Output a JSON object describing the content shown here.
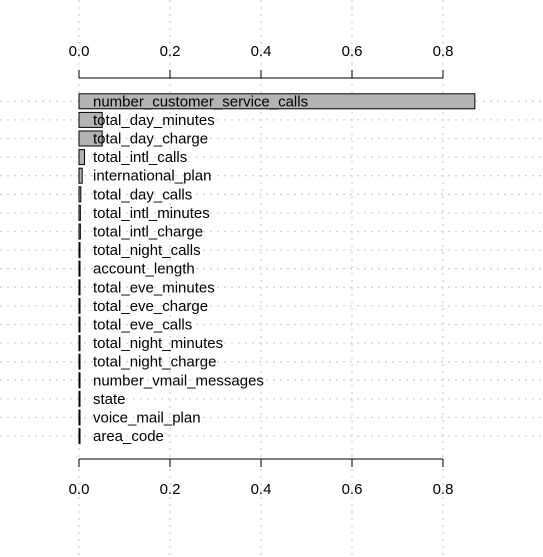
{
  "chart_data": {
    "type": "bar",
    "orientation": "horizontal",
    "title": "",
    "xlabel": "",
    "ylabel": "",
    "xlim": [
      0,
      0.88
    ],
    "x_ticks": [
      "0.0",
      "0.2",
      "0.4",
      "0.6",
      "0.8"
    ],
    "tick_values": [
      0.0,
      0.2,
      0.4,
      0.6,
      0.8
    ],
    "axes": [
      "top",
      "bottom"
    ],
    "grid": true,
    "bar_color": "#b3b3b3",
    "grid_color": "#d3d3d3",
    "categories": [
      "number_customer_service_calls",
      "total_day_minutes",
      "total_day_charge",
      "total_intl_calls",
      "international_plan",
      "total_day_calls",
      "total_intl_minutes",
      "total_intl_charge",
      "total_night_calls",
      "account_length",
      "total_eve_minutes",
      "total_eve_charge",
      "total_eve_calls",
      "total_night_minutes",
      "total_night_charge",
      "number_vmail_messages",
      "state",
      "voice_mail_plan",
      "area_code"
    ],
    "values": [
      0.87,
      0.051,
      0.051,
      0.012,
      0.007,
      0.004,
      0.003,
      0.003,
      0.002,
      0.002,
      0.002,
      0.002,
      0.002,
      0.002,
      0.002,
      0.002,
      0.002,
      0.002,
      0.002
    ]
  }
}
